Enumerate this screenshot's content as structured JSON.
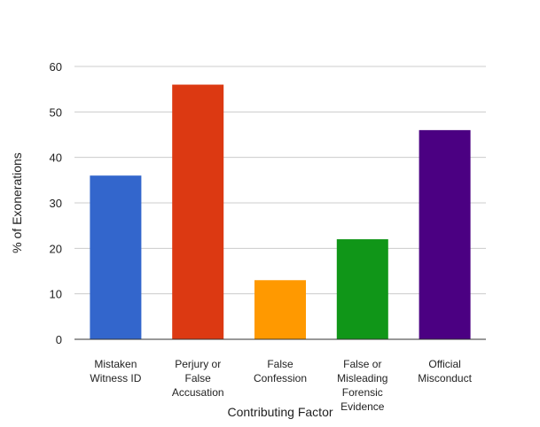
{
  "chart_data": {
    "type": "bar",
    "title": "",
    "xlabel": "Contributing Factor",
    "ylabel": "% of Exonerations",
    "ylim": [
      0,
      60
    ],
    "yticks": [
      0,
      10,
      20,
      30,
      40,
      50,
      60
    ],
    "grid": true,
    "legend": "none",
    "categories": [
      [
        "Mistaken",
        "Witness ID"
      ],
      [
        "Perjury or",
        "False",
        "Accusation"
      ],
      [
        "False",
        "Confession"
      ],
      [
        "False or",
        "Misleading",
        "Forensic",
        "Evidence"
      ],
      [
        "Official",
        "Misconduct"
      ]
    ],
    "values": [
      36,
      56,
      13,
      22,
      46
    ],
    "colors": [
      "#3366cc",
      "#dc3912",
      "#ff9900",
      "#109618",
      "#4b0082"
    ]
  }
}
